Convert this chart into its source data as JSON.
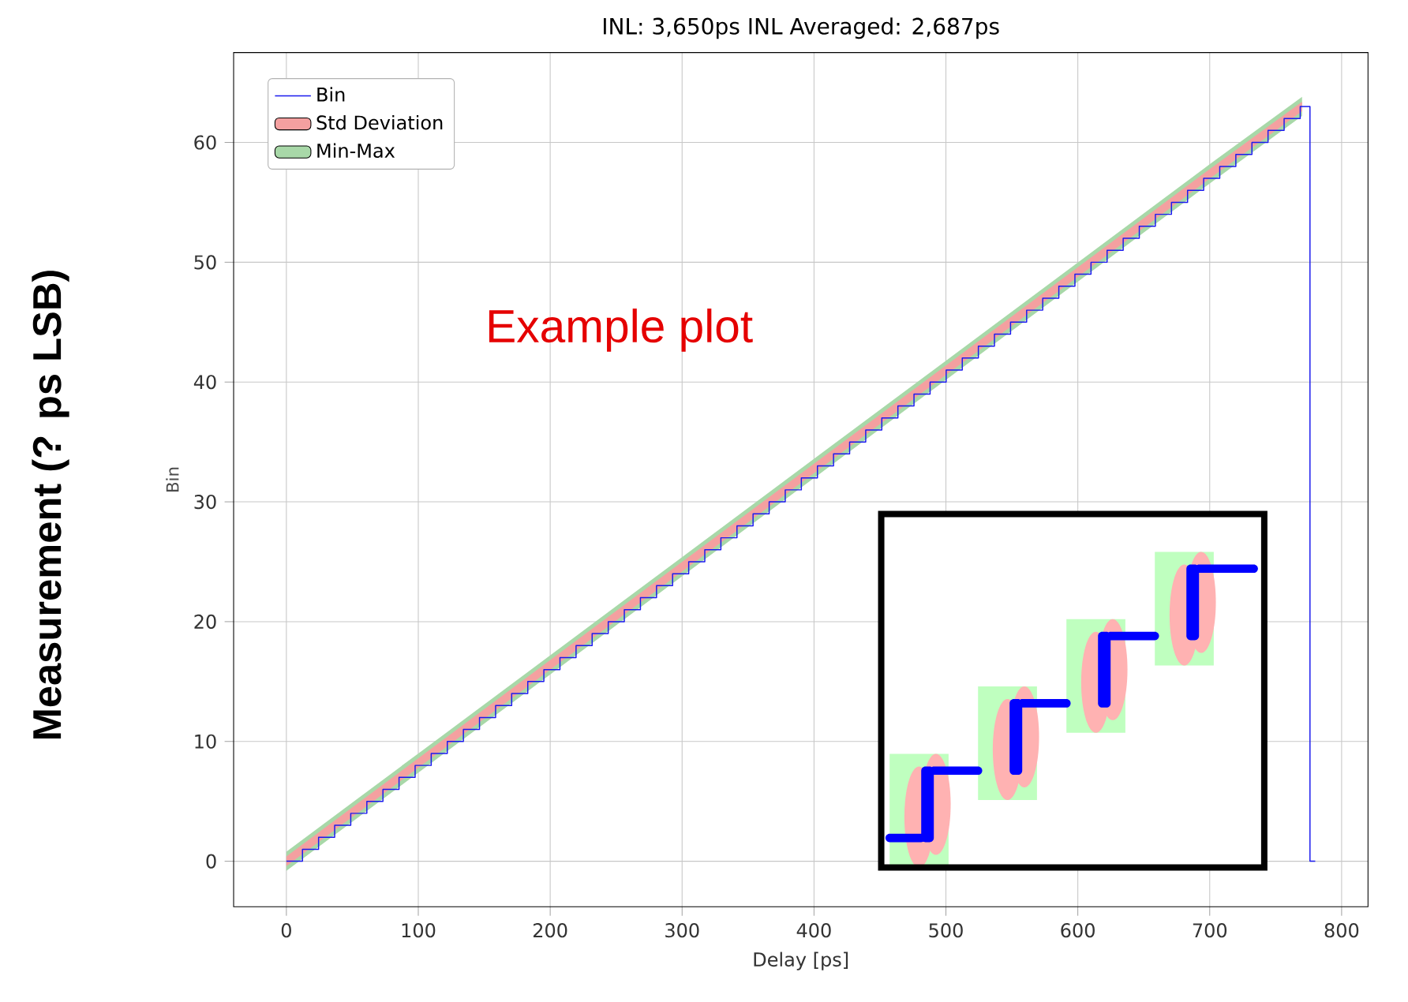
{
  "chart_data": {
    "type": "step",
    "title": "INL: 3,650ps INL Averaged: 2,687ps",
    "xlabel": "Delay [ps]",
    "ylabel": "Bin",
    "annotations": [
      "Example plot",
      "Measurement (? ps LSB)"
    ],
    "xlim": [
      -40,
      820
    ],
    "ylim": [
      -3.8,
      67.5
    ],
    "xticks": [
      0,
      100,
      200,
      300,
      400,
      500,
      600,
      700,
      800
    ],
    "yticks": [
      0,
      10,
      20,
      30,
      40,
      50,
      60
    ],
    "grid": true,
    "legend": "top left",
    "series": [
      {
        "name": "Bin",
        "color": "#1a1aee",
        "x": [
          0,
          12.2,
          24.4,
          36.6,
          48.8,
          61,
          73.2,
          85.4,
          97.6,
          109.8,
          122,
          134.2,
          146.4,
          158.6,
          170.8,
          183,
          195.2,
          207.4,
          219.6,
          231.8,
          244,
          256.2,
          268.4,
          280.6,
          292.8,
          305,
          317.2,
          329.4,
          341.6,
          353.8,
          366,
          378.2,
          390.4,
          402.6,
          414.8,
          427,
          439.2,
          451.4,
          463.6,
          475.8,
          488,
          500.2,
          512.4,
          524.6,
          536.8,
          549,
          561.2,
          573.4,
          585.6,
          597.8,
          610,
          622.2,
          634.4,
          646.6,
          658.8,
          671,
          683.2,
          695.4,
          707.6,
          719.8,
          732,
          744.2,
          756.4,
          768.6,
          776,
          780
        ],
        "values": [
          0,
          1,
          2,
          3,
          4,
          5,
          6,
          7,
          8,
          9,
          10,
          11,
          12,
          13,
          14,
          15,
          16,
          17,
          18,
          19,
          20,
          21,
          22,
          23,
          24,
          25,
          26,
          27,
          28,
          29,
          30,
          31,
          32,
          33,
          34,
          35,
          36,
          37,
          38,
          39,
          40,
          41,
          42,
          43,
          44,
          45,
          46,
          47,
          48,
          49,
          50,
          51,
          52,
          53,
          54,
          55,
          56,
          57,
          58,
          59,
          60,
          61,
          62,
          63,
          0,
          0
        ]
      },
      {
        "name": "Std Deviation",
        "type": "area",
        "color": "#f4a0a0",
        "x": [
          0,
          103.7,
          201.3,
          298.9,
          402.6,
          500.2,
          597.8,
          701.5,
          770
        ],
        "values": [
          null,
          null,
          null,
          null,
          null,
          null,
          null,
          null,
          null
        ],
        "lower": [
          -0.4,
          8.1,
          16.1,
          24.1,
          32.6,
          40.6,
          48.6,
          57.1,
          62.6
        ],
        "upper": [
          0.4,
          8.9,
          16.9,
          24.9,
          33.4,
          41.4,
          49.4,
          57.9,
          63.4
        ]
      },
      {
        "name": "Min-Max",
        "type": "area",
        "color": "#a8d8a8",
        "x": [
          0,
          103.7,
          201.3,
          298.9,
          402.6,
          500.2,
          597.8,
          701.5,
          770
        ],
        "values": [
          null,
          null,
          null,
          null,
          null,
          null,
          null,
          null,
          null
        ],
        "lower": [
          -0.8,
          7.7,
          15.7,
          23.7,
          32.2,
          40.2,
          48.2,
          56.7,
          62.2
        ],
        "upper": [
          0.8,
          9.3,
          17.3,
          25.3,
          33.8,
          41.8,
          49.8,
          58.3,
          63.8
        ]
      }
    ]
  }
}
